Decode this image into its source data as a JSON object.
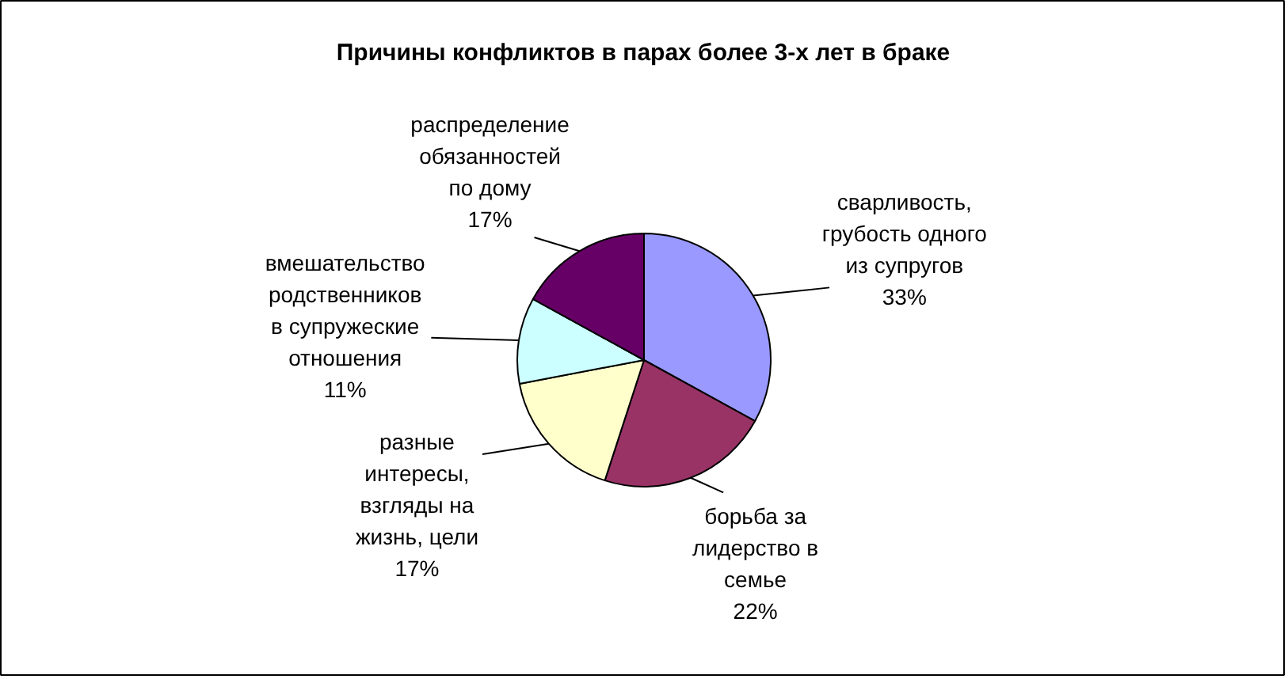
{
  "chart_data": {
    "type": "pie",
    "title": "Причины конфликтов в парах более 3-х лет в браке",
    "categories": [
      "сварливость,\nгрубость одного\nиз супругов",
      "борьба за\nлидерство в\nсемье",
      "разные\nинтересы,\nвзгляды на\nжизнь, цели",
      "вмешательство\nродственников\nв супружеские\nотношения",
      "распределение\nобязанностей\nпо дому"
    ],
    "values": [
      33,
      22,
      17,
      11,
      17
    ],
    "colors": [
      "#9999ff",
      "#993366",
      "#ffffcc",
      "#ccffff",
      "#660066"
    ],
    "value_labels": [
      "33%",
      "22%",
      "17%",
      "11%",
      "17%"
    ]
  }
}
